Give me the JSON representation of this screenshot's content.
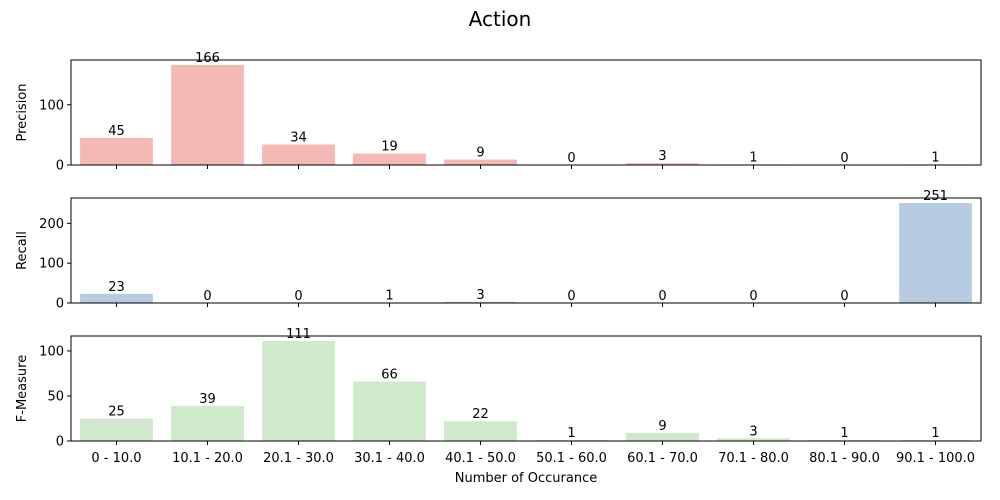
{
  "chart_data": {
    "type": "bar",
    "title": "Action",
    "xlabel": "Number of Occurance",
    "categories": [
      "0 - 10.0",
      "10.1 - 20.0",
      "20.1 - 30.0",
      "30.1 - 40.0",
      "40.1 - 50.0",
      "50.1 - 60.0",
      "60.1 - 70.0",
      "70.1 - 80.0",
      "80.1 - 90.0",
      "90.1 - 100.0"
    ],
    "subplots": [
      {
        "ylabel": "Precision",
        "ylim": [
          0,
          174.3
        ],
        "yticks": [
          0,
          100
        ],
        "color": "#f4b9b5",
        "values": [
          45,
          166,
          34,
          19,
          9,
          0,
          3,
          1,
          0,
          1
        ]
      },
      {
        "ylabel": "Recall",
        "ylim": [
          0,
          263.6
        ],
        "yticks": [
          0,
          100,
          200
        ],
        "color": "#b7cbe1",
        "values": [
          23,
          0,
          0,
          1,
          3,
          0,
          0,
          0,
          0,
          251
        ]
      },
      {
        "ylabel": "F-Measure",
        "ylim": [
          0,
          116.6
        ],
        "yticks": [
          0,
          50,
          100
        ],
        "color": "#d0e8cb",
        "values": [
          25,
          39,
          111,
          66,
          22,
          1,
          9,
          3,
          1,
          1
        ]
      }
    ]
  }
}
